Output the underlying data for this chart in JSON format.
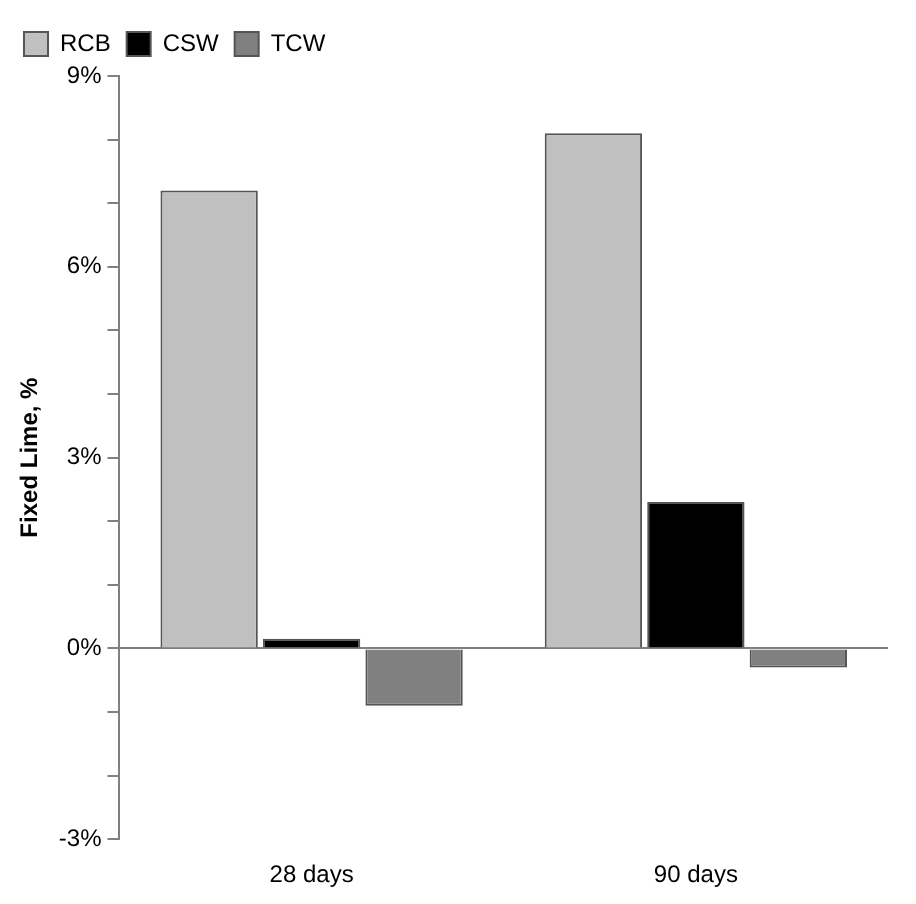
{
  "chart_data": {
    "type": "bar",
    "ylabel": "Fixed Lime, %",
    "categories": [
      "28 days",
      "90 days"
    ],
    "series": [
      {
        "name": "RCB",
        "color": "#c0c0c0",
        "values": [
          7.2,
          8.1
        ]
      },
      {
        "name": "CSW",
        "color": "#000000",
        "values": [
          0.15,
          2.3
        ]
      },
      {
        "name": "TCW",
        "color": "#808080",
        "values": [
          -0.9,
          -0.3
        ]
      }
    ],
    "ylim": [
      -3,
      9
    ],
    "yticks": [
      {
        "value": -3,
        "label": "-3%"
      },
      {
        "value": -2,
        "label": null
      },
      {
        "value": -1,
        "label": null
      },
      {
        "value": 0,
        "label": "0%"
      },
      {
        "value": 1,
        "label": null
      },
      {
        "value": 2,
        "label": null
      },
      {
        "value": 3,
        "label": "3%"
      },
      {
        "value": 4,
        "label": null
      },
      {
        "value": 5,
        "label": null
      },
      {
        "value": 6,
        "label": "6%"
      },
      {
        "value": 7,
        "label": null
      },
      {
        "value": 8,
        "label": null
      },
      {
        "value": 9,
        "label": "9%"
      }
    ],
    "legend": "top left"
  }
}
